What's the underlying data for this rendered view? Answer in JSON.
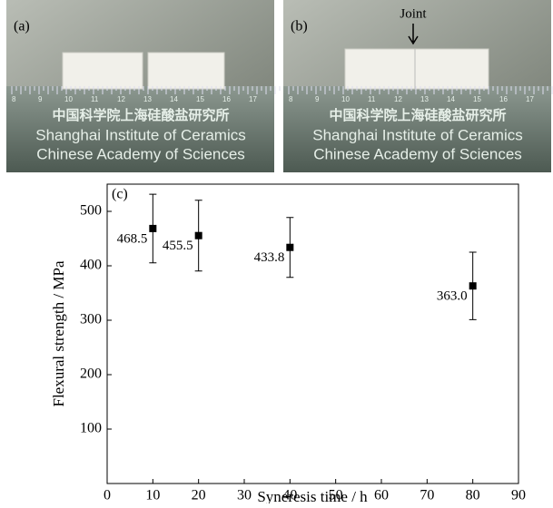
{
  "photos": [
    {
      "label": "(a)",
      "ruler_title": "中国科学院上海硅酸盐研究所",
      "ruler_line1": "Shanghai Institute of Ceramics",
      "ruler_line2": "Chinese Academy of Sciences",
      "ruler_numbers": [
        "8",
        "9",
        "10",
        "11",
        "12",
        "13",
        "14",
        "15",
        "16",
        "17"
      ]
    },
    {
      "label": "(b)",
      "annotation": "Joint",
      "ruler_title": "中国科学院上海硅酸盐研究所",
      "ruler_line1": "Shanghai Institute of Ceramics",
      "ruler_line2": "Chinese Academy of Sciences",
      "ruler_numbers": [
        "8",
        "9",
        "10",
        "11",
        "12",
        "13",
        "14",
        "15",
        "16",
        "17"
      ]
    }
  ],
  "chart_data": {
    "type": "scatter",
    "panel_label": "(c)",
    "x_label": "Syneresis time / h",
    "y_label": "Flexural strength / MPa",
    "xlim": [
      0,
      90
    ],
    "xticks": [
      0,
      10,
      20,
      30,
      40,
      50,
      60,
      70,
      80,
      90
    ],
    "ylim": [
      0,
      550
    ],
    "yticks": [
      100,
      200,
      300,
      400,
      500
    ],
    "series": [
      {
        "name": null,
        "color": "#000000",
        "x": [
          10,
          20,
          40,
          80
        ],
        "values": [
          468.5,
          455.5,
          433.8,
          363.0
        ],
        "value_labels": [
          "468.5",
          "455.5",
          "433.8",
          "363.0"
        ],
        "errors": [
          63,
          65,
          55,
          62
        ]
      }
    ]
  }
}
